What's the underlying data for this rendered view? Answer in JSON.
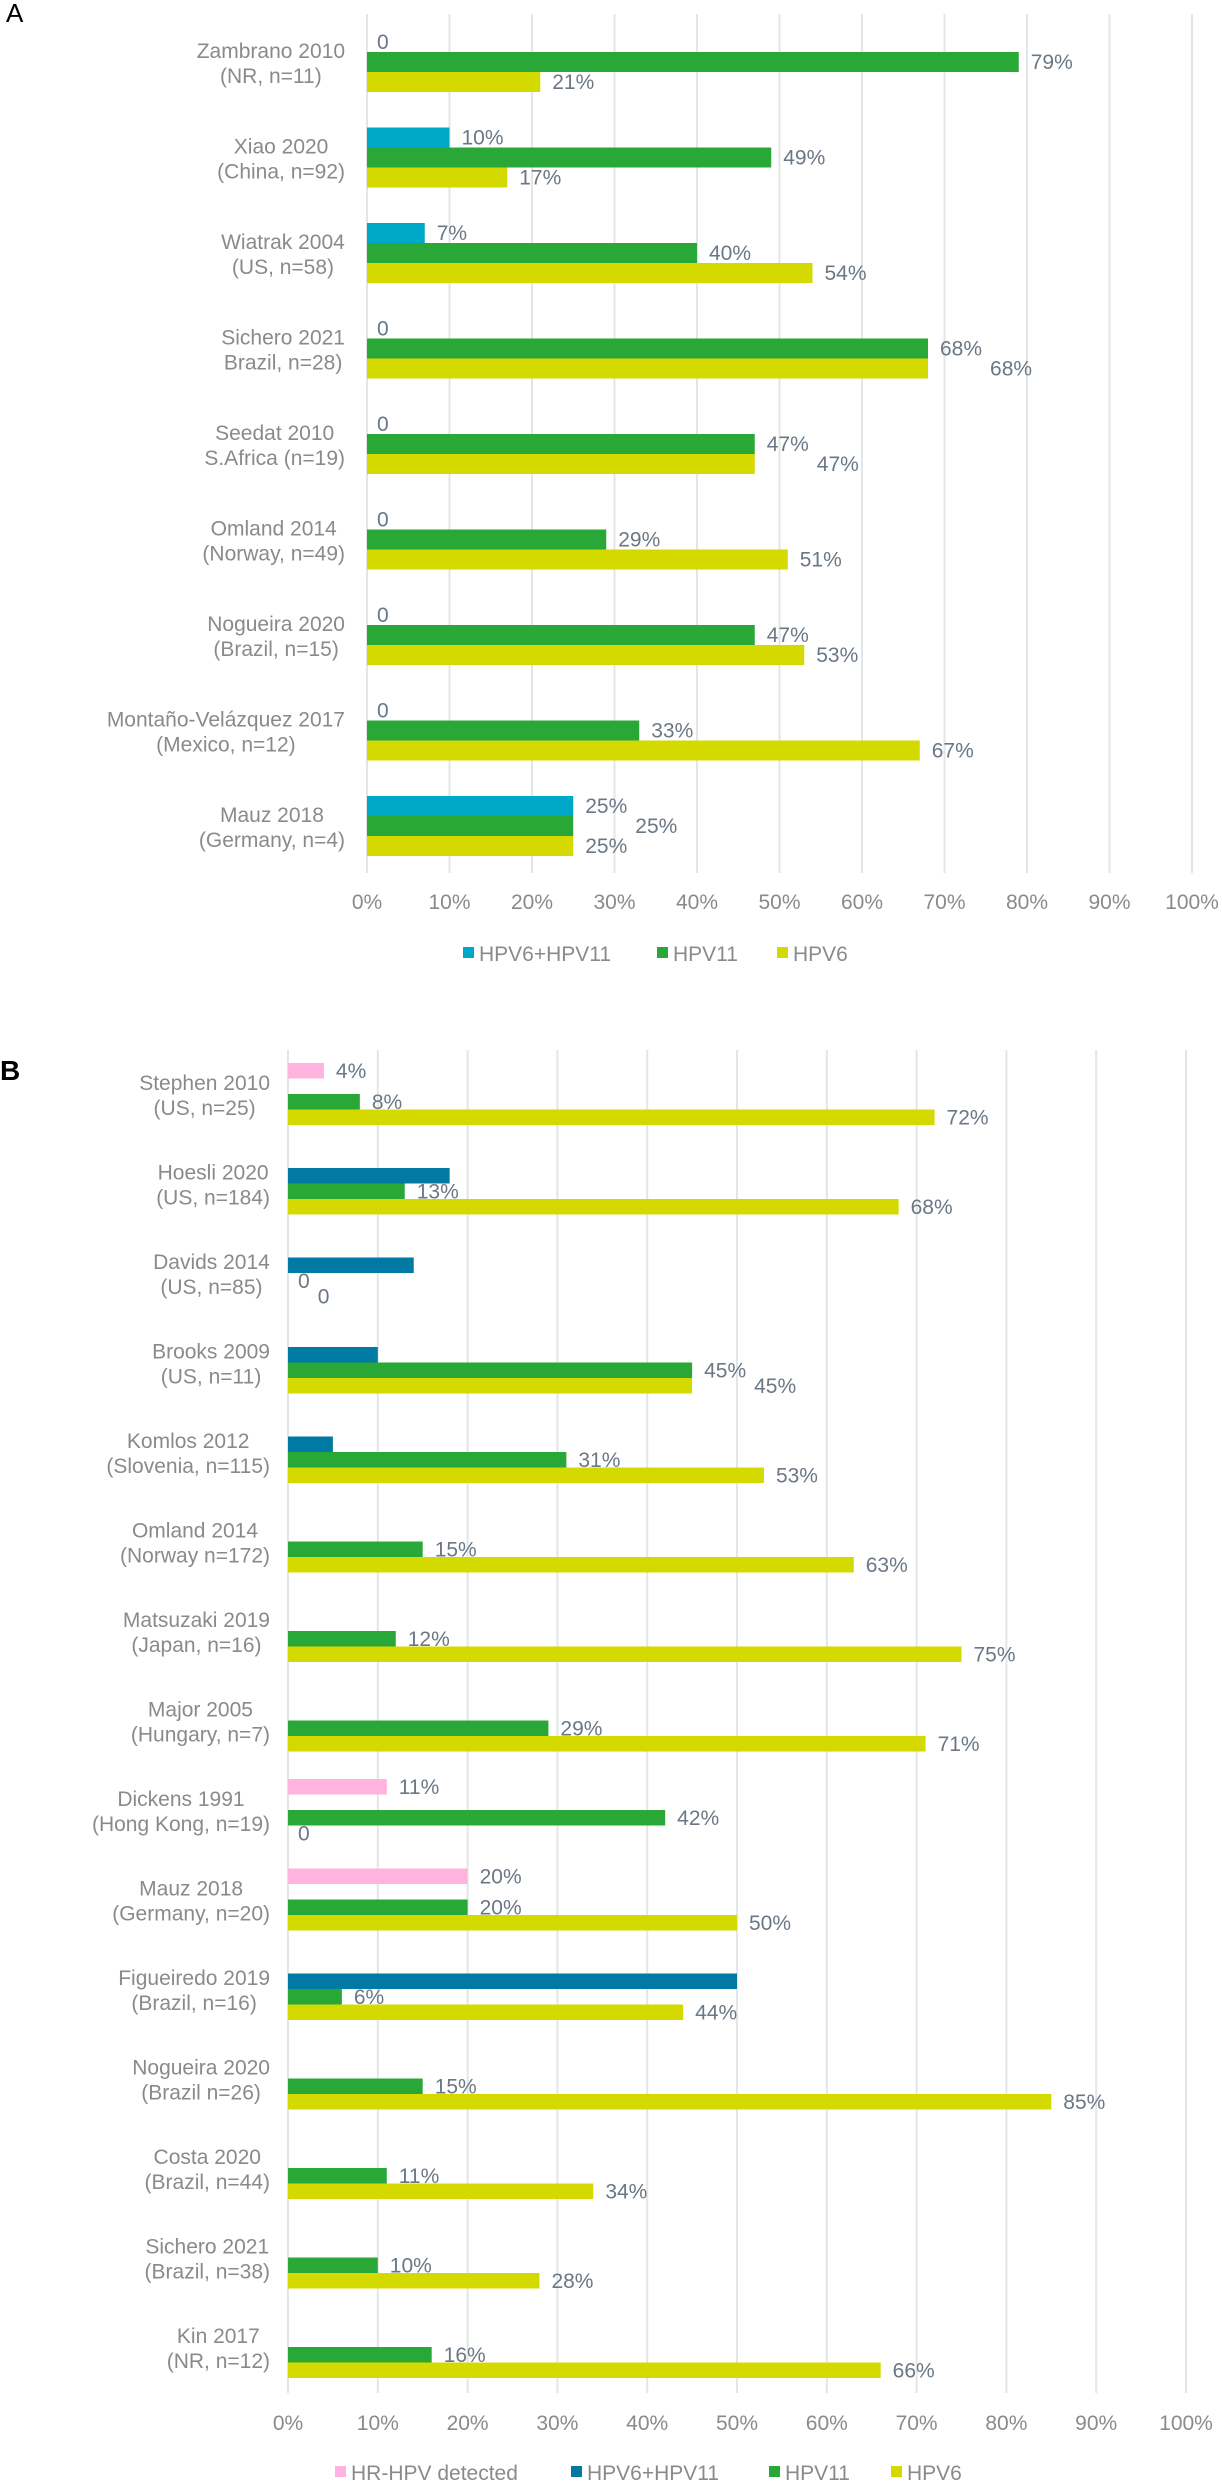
{
  "chart_data": [
    {
      "panel": "A",
      "type": "bar",
      "orientation": "horizontal",
      "title": "",
      "xlabel": "",
      "ylabel": "",
      "xlim": [
        0,
        100
      ],
      "x_ticks": [
        "0%",
        "10%",
        "20%",
        "30%",
        "40%",
        "50%",
        "60%",
        "70%",
        "80%",
        "90%",
        "100%"
      ],
      "grid": true,
      "legend_position": "bottom",
      "categories": [
        [
          "Zambrano 2010",
          "(NR, n=11)"
        ],
        [
          "Xiao 2020",
          "(China, n=92)"
        ],
        [
          "Wiatrak 2004",
          "(US, n=58)"
        ],
        [
          "Sichero 2021",
          "Brazil, n=28)"
        ],
        [
          "Seedat 2010",
          "S.Africa (n=19)"
        ],
        [
          "Omland 2014",
          "(Norway, n=49)"
        ],
        [
          "Nogueira 2020",
          "(Brazil, n=15)"
        ],
        [
          "Montaño-Velázquez 2017",
          "(Mexico, n=12)"
        ],
        [
          "Mauz 2018",
          "(Germany, n=4)"
        ]
      ],
      "series": [
        {
          "name": "HPV6+HPV11",
          "color": "#00a8c8",
          "values": [
            0,
            10,
            7,
            0,
            0,
            0,
            0,
            0,
            25
          ],
          "labels": [
            "0",
            "10%",
            "7%",
            "0",
            "0",
            "0",
            "0",
            "0",
            "25%"
          ]
        },
        {
          "name": "HPV11",
          "color": "#2aa837",
          "values": [
            79,
            49,
            40,
            68,
            47,
            29,
            47,
            33,
            25
          ],
          "labels": [
            "79%",
            "49%",
            "40%",
            "68%",
            "47%",
            "29%",
            "47%",
            "33%",
            "25%"
          ]
        },
        {
          "name": "HPV6",
          "color": "#d4d900",
          "values": [
            21,
            17,
            54,
            68,
            47,
            51,
            53,
            67,
            25
          ],
          "labels": [
            "21%",
            "17%",
            "54%",
            "68%",
            "47%",
            "51%",
            "53%",
            "67%",
            "25%"
          ]
        }
      ]
    },
    {
      "panel": "B",
      "type": "bar",
      "orientation": "horizontal",
      "title": "",
      "xlabel": "",
      "ylabel": "",
      "xlim": [
        0,
        100
      ],
      "x_ticks": [
        "0%",
        "10%",
        "20%",
        "30%",
        "40%",
        "50%",
        "60%",
        "70%",
        "80%",
        "90%",
        "100%"
      ],
      "grid": true,
      "legend_position": "bottom",
      "categories": [
        [
          "Stephen 2010",
          "(US, n=25)"
        ],
        [
          "Hoesli 2020",
          "(US, n=184)"
        ],
        [
          "Davids 2014",
          "(US, n=85)"
        ],
        [
          "Brooks 2009",
          "(US, n=11)"
        ],
        [
          "Komlos 2012",
          "(Slovenia, n=115)"
        ],
        [
          "Omland 2014",
          "(Norway n=172)"
        ],
        [
          "Matsuzaki 2019",
          "(Japan, n=16)"
        ],
        [
          "Major 2005",
          "(Hungary, n=7)"
        ],
        [
          "Dickens 1991",
          "(Hong Kong, n=19)"
        ],
        [
          "Mauz 2018",
          "(Germany, n=20)"
        ],
        [
          "Figueiredo 2019",
          "(Brazil, n=16)"
        ],
        [
          "Nogueira 2020",
          "(Brazil n=26)"
        ],
        [
          "Costa 2020",
          "(Brazil, n=44)"
        ],
        [
          "Sichero 2021",
          "(Brazil, n=38)"
        ],
        [
          "Kin 2017",
          "(NR, n=12)"
        ]
      ],
      "series": [
        {
          "name": "HR-HPV detected",
          "color": "#ffb3de",
          "values": [
            4,
            null,
            null,
            null,
            null,
            null,
            null,
            null,
            11,
            20,
            null,
            null,
            null,
            null,
            null
          ],
          "labels": [
            "4%",
            null,
            null,
            null,
            null,
            null,
            null,
            null,
            "11%",
            "20%",
            null,
            null,
            null,
            null,
            null
          ]
        },
        {
          "name": "HPV6+HPV11",
          "color": "#0079a3",
          "values": [
            null,
            18,
            14,
            10,
            5,
            null,
            null,
            null,
            null,
            null,
            50,
            null,
            null,
            null,
            null
          ],
          "labels": [
            null,
            null,
            null,
            null,
            null,
            null,
            null,
            null,
            null,
            null,
            null,
            null,
            null,
            null,
            null
          ]
        },
        {
          "name": "HPV11",
          "color": "#2aa837",
          "values": [
            8,
            13,
            0,
            45,
            31,
            15,
            12,
            29,
            42,
            20,
            6,
            15,
            11,
            10,
            16
          ],
          "labels": [
            "8%",
            "13%",
            "0",
            "45%",
            "31%",
            "15%",
            "12%",
            "29%",
            "42%",
            "20%",
            "6%",
            "15%",
            "11%",
            "10%",
            "16%"
          ]
        },
        {
          "name": "HPV6",
          "color": "#d4d900",
          "values": [
            72,
            68,
            0,
            45,
            53,
            63,
            75,
            71,
            0,
            50,
            44,
            85,
            34,
            28,
            66
          ],
          "labels": [
            "72%",
            "68%",
            "0",
            "45%",
            "53%",
            "63%",
            "75%",
            "71%",
            "0",
            "50%",
            "44%",
            "85%",
            "34%",
            "28%",
            "66%"
          ]
        }
      ]
    }
  ]
}
